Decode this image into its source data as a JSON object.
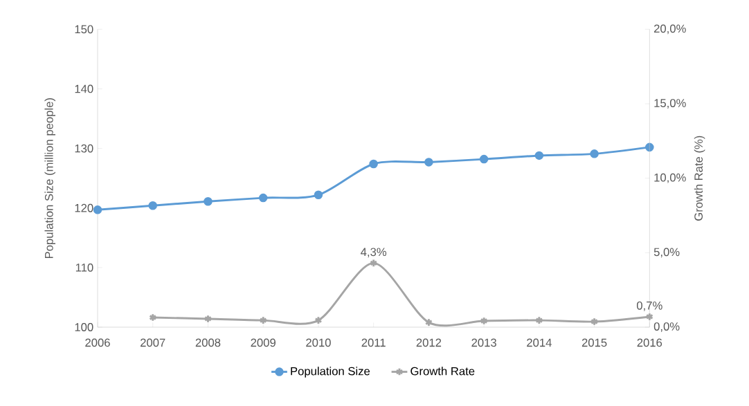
{
  "chart_data": {
    "type": "line",
    "categories": [
      "2006",
      "2007",
      "2008",
      "2009",
      "2010",
      "2011",
      "2012",
      "2013",
      "2014",
      "2015",
      "2016"
    ],
    "ylabel": "Population Size (million people)",
    "y2label": "Growth Rate (%)",
    "ylim": [
      100,
      150
    ],
    "yticks": [
      100,
      110,
      120,
      130,
      140,
      150
    ],
    "y2lim": [
      0,
      20
    ],
    "y2ticks": [
      {
        "value": 0,
        "label": "0,0%"
      },
      {
        "value": 5,
        "label": "5,0%"
      },
      {
        "value": 10,
        "label": "10,0%"
      },
      {
        "value": 15,
        "label": "15,0%"
      },
      {
        "value": 20,
        "label": "20,0%"
      }
    ],
    "series": [
      {
        "name": "Population Size",
        "color": "#5b9bd5",
        "marker": "circle",
        "values": [
          119.7,
          120.4,
          121.1,
          121.7,
          122.2,
          127.4,
          127.7,
          128.2,
          128.8,
          129.1,
          130.2
        ]
      },
      {
        "name": "Growth Rate",
        "color": "#a5a5a5",
        "marker": "cross",
        "axis": "y2",
        "values": [
          null,
          0.65,
          0.56,
          0.46,
          0.46,
          4.3,
          0.32,
          0.42,
          0.46,
          0.37,
          0.7
        ],
        "value_labels": [
          null,
          null,
          null,
          null,
          null,
          "4,3%",
          null,
          null,
          null,
          null,
          "0,7%"
        ]
      }
    ],
    "line_style": "solid",
    "grid": false,
    "legend": "bottom"
  }
}
